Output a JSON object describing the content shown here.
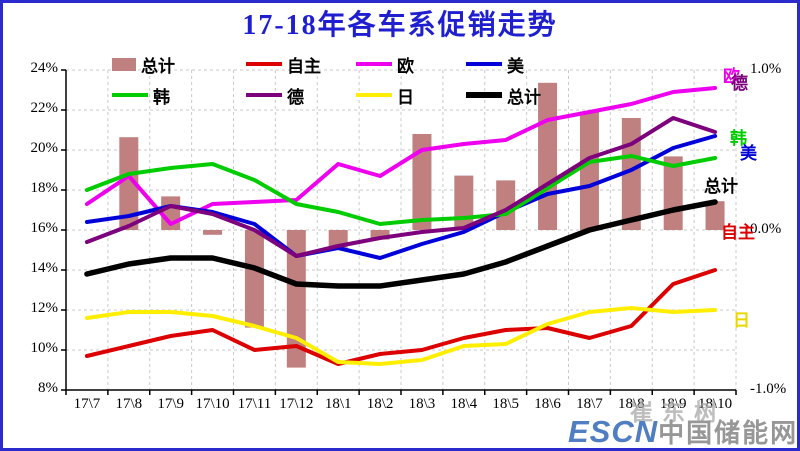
{
  "title": "17-18年各车系促销走势",
  "legend": {
    "rows": [
      [
        {
          "label": "总计",
          "swatch": "bar",
          "color": "#C08080"
        },
        {
          "label": "自主",
          "swatch": "line",
          "color": "#DD0000"
        },
        {
          "label": "欧",
          "swatch": "line",
          "color": "#EE00EE"
        },
        {
          "label": "美",
          "swatch": "line",
          "color": "#0000D8"
        }
      ],
      [
        {
          "label": "韩",
          "swatch": "line",
          "color": "#00CC00"
        },
        {
          "label": "德",
          "swatch": "line",
          "color": "#7D007D"
        },
        {
          "label": "日",
          "swatch": "line",
          "color": "#FFEE00"
        },
        {
          "label": "总计",
          "swatch": "line-thick",
          "color": "#000000"
        }
      ]
    ]
  },
  "chart_data": {
    "type": "combo-bar-line",
    "categories": [
      "17\\7",
      "17\\8",
      "17\\9",
      "17\\10",
      "17\\11",
      "17\\12",
      "18\\1",
      "18\\2",
      "18\\3",
      "18\\4",
      "18\\5",
      "18\\6",
      "18\\7",
      "18\\8",
      "18\\9",
      "18\\10"
    ],
    "bar_series": {
      "name": "总计",
      "axis": "right",
      "color": "#C08080",
      "values": [
        0,
        0.58,
        0.21,
        -0.03,
        -0.61,
        -0.86,
        -0.11,
        -0.06,
        0.6,
        0.34,
        0.31,
        0.92,
        0.74,
        0.7,
        0.46,
        0.18
      ]
    },
    "line_series": [
      {
        "name": "自主",
        "color": "#DD0000",
        "width": 4,
        "values": [
          9.7,
          10.2,
          10.7,
          11.0,
          10.0,
          10.2,
          9.3,
          9.8,
          10.0,
          10.6,
          11.0,
          11.1,
          10.6,
          11.2,
          13.3,
          14.0
        ]
      },
      {
        "name": "欧",
        "color": "#EE00EE",
        "width": 4,
        "values": [
          17.3,
          18.7,
          16.3,
          17.3,
          17.4,
          17.5,
          19.3,
          18.7,
          20.0,
          20.3,
          20.5,
          21.5,
          21.9,
          22.3,
          22.9,
          23.1
        ]
      },
      {
        "name": "美",
        "color": "#0000D8",
        "width": 4,
        "values": [
          16.4,
          16.7,
          17.2,
          16.9,
          16.3,
          14.7,
          15.1,
          14.6,
          15.3,
          15.9,
          16.9,
          17.8,
          18.2,
          19.0,
          20.1,
          20.7
        ]
      },
      {
        "name": "韩",
        "color": "#00CC00",
        "width": 4,
        "values": [
          18.0,
          18.8,
          19.1,
          19.3,
          18.5,
          17.3,
          16.9,
          16.3,
          16.5,
          16.6,
          16.8,
          18.1,
          19.4,
          19.7,
          19.2,
          19.6
        ]
      },
      {
        "name": "德",
        "color": "#7D007D",
        "width": 4,
        "values": [
          15.4,
          16.2,
          17.2,
          16.8,
          16.0,
          14.7,
          15.2,
          15.6,
          15.9,
          16.1,
          17.0,
          18.3,
          19.6,
          20.3,
          21.6,
          20.9
        ]
      },
      {
        "name": "日",
        "color": "#FFEE00",
        "width": 4,
        "values": [
          11.6,
          11.9,
          11.9,
          11.7,
          11.2,
          10.6,
          9.4,
          9.3,
          9.5,
          10.2,
          10.3,
          11.3,
          11.9,
          12.1,
          11.9,
          12.0
        ]
      },
      {
        "name": "总计",
        "color": "#000000",
        "width": 5.5,
        "values": [
          13.8,
          14.3,
          14.6,
          14.6,
          14.1,
          13.3,
          13.2,
          13.2,
          13.5,
          13.8,
          14.4,
          15.2,
          16.0,
          16.5,
          17.0,
          17.4
        ]
      }
    ],
    "y_left": {
      "min": 8,
      "max": 24,
      "step": 2,
      "suffix": "%"
    },
    "y_right": {
      "labels": [
        "1.0%",
        "0.0%",
        "-1.0%"
      ],
      "values": [
        1.0,
        0.0,
        -1.0
      ]
    },
    "grid": true,
    "legend_position": "top",
    "end_labels": [
      {
        "text": "欧",
        "color": "#EE00EE"
      },
      {
        "text": "德",
        "color": "#7D007D"
      },
      {
        "text": "韩",
        "color": "#00CC00"
      },
      {
        "text": "美",
        "color": "#0000D8"
      },
      {
        "text": "总计",
        "color": "#000000"
      },
      {
        "text": "自主",
        "color": "#DD0000"
      },
      {
        "text": "日",
        "color": "#E8D800"
      }
    ]
  },
  "watermark": {
    "author": "崔东树",
    "logo_latin": "ESCN",
    "logo_cn": "中国储能网"
  }
}
